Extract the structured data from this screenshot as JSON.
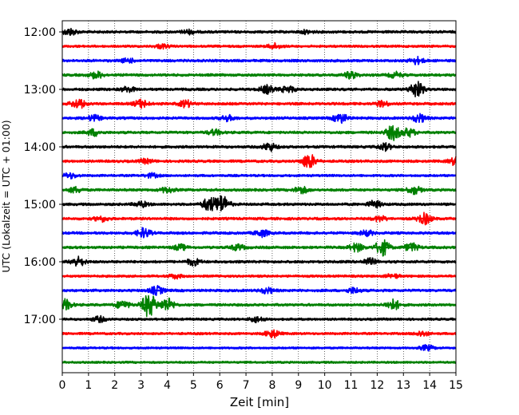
{
  "chart_data": {
    "type": "line",
    "title": "",
    "xlabel": "Zeit  [min]",
    "ylabel": "UTC (Lokalzeit = UTC + 01:00)",
    "xlim": [
      0,
      15
    ],
    "x_ticks": [
      "0",
      "1",
      "2",
      "3",
      "4",
      "5",
      "6",
      "7",
      "8",
      "9",
      "10",
      "11",
      "12",
      "13",
      "14",
      "15"
    ],
    "y_ticks": [
      "12:00",
      "13:00",
      "14:00",
      "15:00",
      "16:00",
      "17:00"
    ],
    "grid": "vertical dotted lines at each minute",
    "trace_interval_minutes": 15,
    "trace_colors": [
      "#000000",
      "#ff0000",
      "#0000ff",
      "#008000"
    ],
    "series": [
      {
        "start": "12:00",
        "color": "#000000",
        "amplitude": 0.1,
        "events": [
          [
            0.3,
            0.25
          ],
          [
            4.8,
            0.15
          ],
          [
            9.3,
            0.12
          ]
        ]
      },
      {
        "start": "12:15",
        "color": "#ff0000",
        "amplitude": 0.09,
        "events": [
          [
            3.8,
            0.15
          ],
          [
            8.1,
            0.2
          ]
        ]
      },
      {
        "start": "12:30",
        "color": "#0000ff",
        "amplitude": 0.1,
        "events": [
          [
            2.5,
            0.15
          ],
          [
            13.5,
            0.25
          ]
        ]
      },
      {
        "start": "12:45",
        "color": "#008000",
        "amplitude": 0.1,
        "events": [
          [
            1.3,
            0.25
          ],
          [
            11.0,
            0.25
          ],
          [
            12.7,
            0.2
          ]
        ]
      },
      {
        "start": "13:00",
        "color": "#000000",
        "amplitude": 0.1,
        "events": [
          [
            2.5,
            0.2
          ],
          [
            7.8,
            0.3
          ],
          [
            8.6,
            0.25
          ],
          [
            13.5,
            0.6
          ]
        ]
      },
      {
        "start": "13:15",
        "color": "#ff0000",
        "amplitude": 0.1,
        "events": [
          [
            0.6,
            0.35
          ],
          [
            3.0,
            0.3
          ],
          [
            4.7,
            0.25
          ],
          [
            12.2,
            0.2
          ]
        ]
      },
      {
        "start": "13:30",
        "color": "#0000ff",
        "amplitude": 0.1,
        "events": [
          [
            1.2,
            0.2
          ],
          [
            6.3,
            0.2
          ],
          [
            10.6,
            0.35
          ],
          [
            13.6,
            0.3
          ]
        ]
      },
      {
        "start": "13:45",
        "color": "#008000",
        "amplitude": 0.1,
        "events": [
          [
            1.2,
            0.25
          ],
          [
            5.8,
            0.2
          ],
          [
            12.6,
            0.55
          ],
          [
            13.2,
            0.3
          ]
        ]
      },
      {
        "start": "14:00",
        "color": "#000000",
        "amplitude": 0.1,
        "events": [
          [
            7.9,
            0.3
          ],
          [
            12.3,
            0.25
          ]
        ]
      },
      {
        "start": "14:15",
        "color": "#ff0000",
        "amplitude": 0.1,
        "events": [
          [
            3.2,
            0.15
          ],
          [
            9.4,
            0.55
          ],
          [
            15.0,
            0.3
          ]
        ]
      },
      {
        "start": "14:30",
        "color": "#0000ff",
        "amplitude": 0.09,
        "events": [
          [
            0.3,
            0.2
          ],
          [
            3.4,
            0.15
          ]
        ]
      },
      {
        "start": "14:45",
        "color": "#008000",
        "amplitude": 0.1,
        "events": [
          [
            0.5,
            0.2
          ],
          [
            4.0,
            0.2
          ],
          [
            9.1,
            0.25
          ],
          [
            13.4,
            0.3
          ]
        ]
      },
      {
        "start": "15:00",
        "color": "#000000",
        "amplitude": 0.1,
        "events": [
          [
            3.0,
            0.2
          ],
          [
            5.6,
            0.5
          ],
          [
            6.1,
            0.65
          ],
          [
            11.9,
            0.25
          ]
        ]
      },
      {
        "start": "15:15",
        "color": "#ff0000",
        "amplitude": 0.1,
        "events": [
          [
            1.5,
            0.2
          ],
          [
            12.1,
            0.2
          ],
          [
            13.8,
            0.4
          ]
        ]
      },
      {
        "start": "15:30",
        "color": "#0000ff",
        "amplitude": 0.1,
        "events": [
          [
            3.1,
            0.35
          ],
          [
            7.6,
            0.25
          ],
          [
            11.6,
            0.2
          ]
        ]
      },
      {
        "start": "15:45",
        "color": "#008000",
        "amplitude": 0.1,
        "events": [
          [
            4.5,
            0.2
          ],
          [
            6.7,
            0.2
          ],
          [
            11.2,
            0.3
          ],
          [
            12.2,
            0.6
          ],
          [
            13.3,
            0.3
          ]
        ]
      },
      {
        "start": "16:00",
        "color": "#000000",
        "amplitude": 0.1,
        "events": [
          [
            0.6,
            0.35
          ],
          [
            5.0,
            0.25
          ],
          [
            11.7,
            0.25
          ]
        ]
      },
      {
        "start": "16:15",
        "color": "#ff0000",
        "amplitude": 0.09,
        "events": [
          [
            4.3,
            0.15
          ],
          [
            12.6,
            0.15
          ]
        ]
      },
      {
        "start": "16:30",
        "color": "#0000ff",
        "amplitude": 0.1,
        "events": [
          [
            3.6,
            0.3
          ],
          [
            7.8,
            0.2
          ],
          [
            11.1,
            0.2
          ]
        ]
      },
      {
        "start": "16:45",
        "color": "#008000",
        "amplitude": 0.1,
        "events": [
          [
            0.1,
            0.4
          ],
          [
            2.3,
            0.3
          ],
          [
            3.3,
            0.9
          ],
          [
            4.0,
            0.5
          ],
          [
            12.6,
            0.4
          ]
        ]
      },
      {
        "start": "17:00",
        "color": "#000000",
        "amplitude": 0.09,
        "events": [
          [
            1.4,
            0.2
          ],
          [
            7.4,
            0.2
          ]
        ]
      },
      {
        "start": "17:15",
        "color": "#ff0000",
        "amplitude": 0.09,
        "events": [
          [
            8.0,
            0.3
          ],
          [
            13.7,
            0.2
          ]
        ]
      },
      {
        "start": "17:30",
        "color": "#0000ff",
        "amplitude": 0.08,
        "events": [
          [
            13.9,
            0.2
          ]
        ]
      },
      {
        "start": "17:45",
        "color": "#008000",
        "amplitude": 0.08,
        "events": []
      }
    ]
  }
}
